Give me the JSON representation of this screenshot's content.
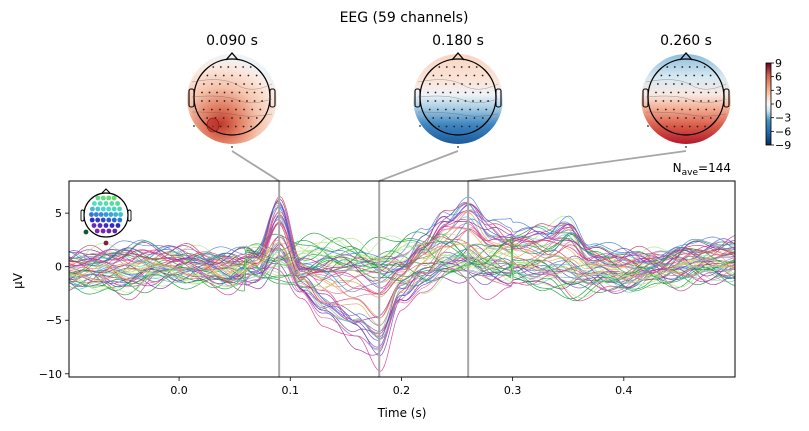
{
  "chart_data": {
    "type": "line",
    "title": "EEG (59 channels)",
    "xlabel": "Time (s)",
    "ylabel": "µV",
    "xlim": [
      -0.099,
      0.5
    ],
    "ylim": [
      -10.3,
      8.0
    ],
    "xticks": [
      0.0,
      0.1,
      0.2,
      0.3,
      0.4
    ],
    "xtick_labels": [
      "0.0",
      "0.1",
      "0.2",
      "0.3",
      "0.4"
    ],
    "yticks": [
      5,
      0,
      -5,
      -10
    ],
    "ytick_labels": [
      "5",
      "0",
      "−5",
      "−10"
    ],
    "grid": false,
    "n_channels": 59,
    "nave_label": {
      "base": "N",
      "sub": "ave",
      "value": "=144"
    },
    "marker_times": [
      0.09,
      0.18,
      0.26
    ],
    "topomaps": [
      {
        "label": "0.090 s",
        "time": 0.09,
        "pattern": "posterior-positive"
      },
      {
        "label": "0.180 s",
        "time": 0.18,
        "pattern": "posterior-negative"
      },
      {
        "label": "0.260 s",
        "time": 0.26,
        "pattern": "posterior-positive-frontal-negative"
      }
    ],
    "colorbar": {
      "ticks": [
        9,
        6,
        3,
        0,
        -3,
        -6,
        -9
      ],
      "tick_labels": [
        "9",
        "6",
        "3",
        "0",
        "−3",
        "−6",
        "−9"
      ],
      "range": [
        -9,
        9
      ],
      "colormap": "RdBu_r"
    },
    "envelope_keypoints": {
      "t": [
        -0.099,
        -0.05,
        0.0,
        0.05,
        0.07,
        0.09,
        0.11,
        0.13,
        0.16,
        0.18,
        0.2,
        0.22,
        0.24,
        0.26,
        0.28,
        0.3,
        0.33,
        0.35,
        0.37,
        0.4,
        0.43,
        0.46,
        0.5
      ],
      "upper": [
        1.5,
        2.5,
        2.0,
        1.5,
        1.5,
        7.0,
        1.0,
        1.2,
        2.0,
        2.0,
        1.5,
        3.0,
        5.5,
        7.2,
        5.0,
        4.0,
        4.5,
        6.0,
        2.5,
        1.8,
        1.5,
        2.5,
        2.8
      ],
      "lower": [
        -2.0,
        -2.5,
        -1.5,
        -2.0,
        -1.5,
        -0.5,
        -3.0,
        -5.0,
        -8.0,
        -9.8,
        -4.0,
        -2.0,
        -1.5,
        -2.0,
        -2.5,
        -2.0,
        -2.5,
        -3.5,
        -2.5,
        -2.5,
        -1.5,
        -1.5,
        -1.5
      ]
    }
  },
  "colors": {
    "marker_line": "#a6a6a6",
    "axes": "#000000",
    "sensor_colors": [
      "#1a9e3a",
      "#46c84b",
      "#7fe36a",
      "#b3e68a",
      "#3aa9a0",
      "#5cc0d0",
      "#4a7fd8",
      "#3446b8",
      "#6a4bc9",
      "#8e2fa6",
      "#b53396",
      "#d63a8e",
      "#e06aa0",
      "#e8909e",
      "#f0a060",
      "#c84060",
      "#8a1a3a",
      "#2a6a3a",
      "#0f5a2a",
      "#7a3aa8"
    ]
  }
}
